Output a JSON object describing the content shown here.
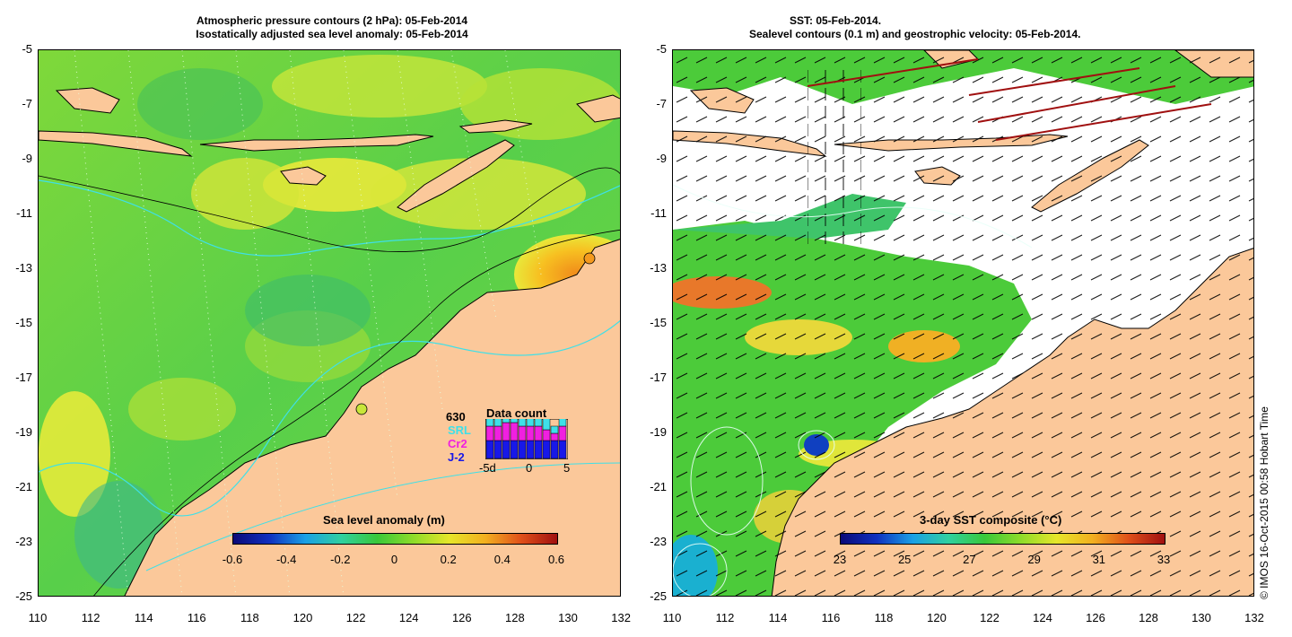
{
  "left_map": {
    "title_line1": "Atmospheric pressure contours (2 hPa): 05-Feb-2014",
    "title_line2": "Isostatically adjusted sea level anomaly: 05-Feb-2014",
    "y_ticks": [
      "-5",
      "-7",
      "-9",
      "-11",
      "-13",
      "-15",
      "-17",
      "-19",
      "-21",
      "-23",
      "-25"
    ],
    "x_ticks": [
      "110",
      "112",
      "114",
      "116",
      "118",
      "120",
      "122",
      "124",
      "126",
      "128",
      "130",
      "132"
    ],
    "colorbar_title": "Sea level anomaly (m)",
    "colorbar_ticks": [
      "-0.6",
      "-0.4",
      "-0.2",
      "0",
      "0.2",
      "0.4",
      "0.6"
    ],
    "legend": {
      "count": "630",
      "title": "Data count",
      "srl": "SRL",
      "cr2": "Cr2",
      "j2": "J-2",
      "axis_left": "-5d",
      "axis_mid": "0",
      "axis_right": "5",
      "bars": [
        {
          "j2": 5,
          "cr2": 4,
          "srl": 5
        },
        {
          "j2": 5,
          "cr2": 4,
          "srl": 4
        },
        {
          "j2": 5,
          "cr2": 5,
          "srl": 5
        },
        {
          "j2": 5,
          "cr2": 5,
          "srl": 5
        },
        {
          "j2": 5,
          "cr2": 4,
          "srl": 5
        },
        {
          "j2": 5,
          "cr2": 4,
          "srl": 4
        },
        {
          "j2": 5,
          "cr2": 4,
          "srl": 3
        },
        {
          "j2": 5,
          "cr2": 3,
          "srl": 4
        },
        {
          "j2": 5,
          "cr2": 2,
          "srl": 2
        },
        {
          "j2": 5,
          "cr2": 4,
          "srl": 7
        }
      ]
    }
  },
  "right_map": {
    "title_line1": "SST: 05-Feb-2014.",
    "title_line2": "Sealevel contours (0.1 m) and geostrophic velocity: 05-Feb-2014.",
    "y_ticks": [
      "-5",
      "-7",
      "-9",
      "-11",
      "-13",
      "-15",
      "-17",
      "-19",
      "-21",
      "-23",
      "-25"
    ],
    "x_ticks": [
      "110",
      "112",
      "114",
      "116",
      "118",
      "120",
      "122",
      "124",
      "126",
      "128",
      "130",
      "132"
    ],
    "colorbar_title": "3-day SST composite (°C)",
    "colorbar_ticks": [
      "23",
      "25",
      "27",
      "29",
      "31",
      "33"
    ]
  },
  "copyright": "© IMOS 16-Oct-2015 00:58 Hobart Time",
  "colors": {
    "land": "#fbc89a",
    "ocean_green": "#4fcf3a",
    "sst_white": "#ffffff"
  }
}
